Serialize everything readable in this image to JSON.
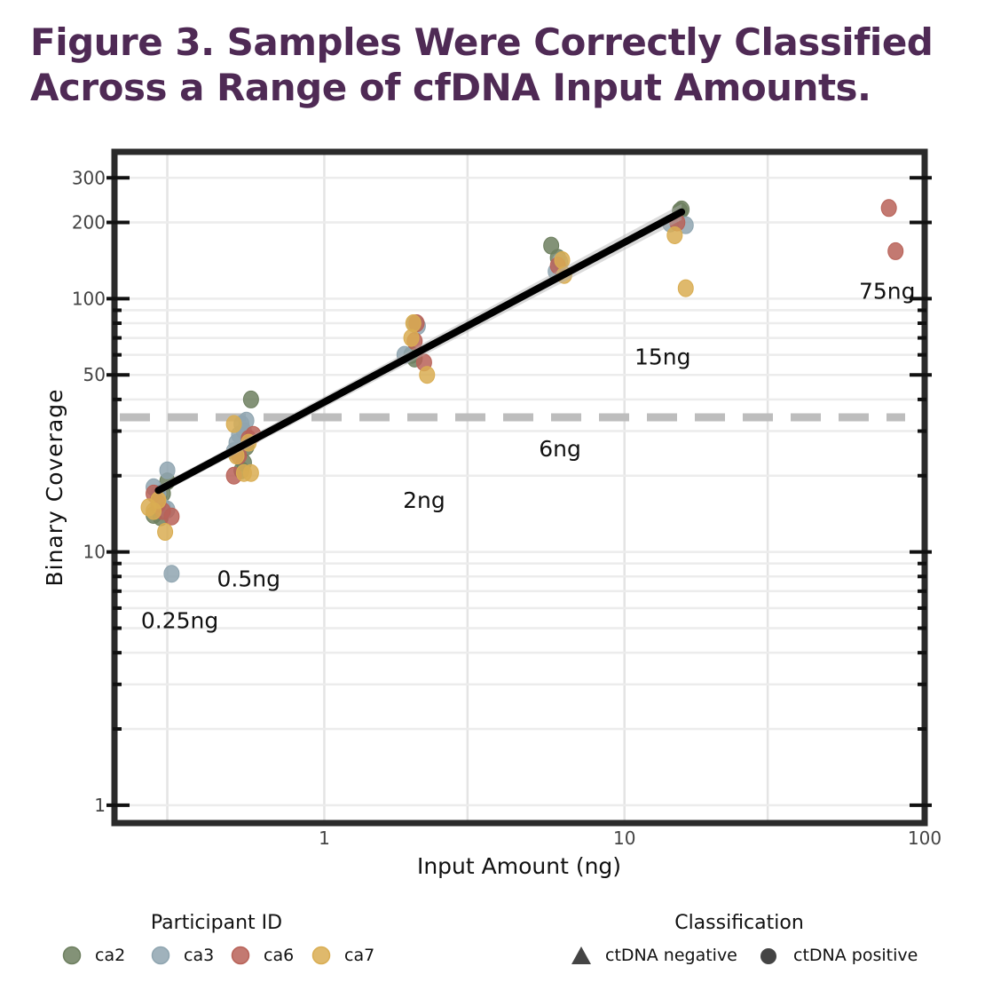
{
  "title": {
    "line1": "Figure 3. Samples Were Correctly Classified",
    "line2": "Across a Range of cfDNA Input Amounts."
  },
  "chart_data": {
    "type": "scatter",
    "x_scale": "log",
    "y_scale": "log",
    "xlabel": "Input Amount (ng)",
    "ylabel": "Binary Coverage",
    "xlim": [
      0.2,
      100
    ],
    "ylim": [
      0.85,
      380
    ],
    "x_ticks": [
      1,
      10,
      100
    ],
    "y_ticks": [
      1,
      10,
      50,
      100,
      200,
      300
    ],
    "grid": true,
    "threshold_line": {
      "y": 34,
      "style": "dashed",
      "color": "#bdbdbd"
    },
    "trend_line": {
      "x": [
        0.28,
        15.5
      ],
      "y": [
        17.5,
        220
      ],
      "color": "#000000"
    },
    "group_labels": [
      {
        "text": "0.25ng",
        "x": 0.33,
        "y": 5.0
      },
      {
        "text": "0.5ng",
        "x": 0.56,
        "y": 7.3
      },
      {
        "text": "2ng",
        "x": 2.15,
        "y": 14.9
      },
      {
        "text": "6ng",
        "x": 6.1,
        "y": 23.8
      },
      {
        "text": "15ng",
        "x": 13.4,
        "y": 55
      },
      {
        "text": "75ng",
        "x": 75,
        "y": 100
      }
    ],
    "series": [
      {
        "name": "ca2",
        "color": "#6d7f5f",
        "points": [
          [
            0.27,
            14
          ],
          [
            0.28,
            15
          ],
          [
            0.28,
            16.5
          ],
          [
            0.29,
            17
          ],
          [
            0.3,
            19
          ],
          [
            0.285,
            13.7
          ],
          [
            0.53,
            21
          ],
          [
            0.54,
            22.5
          ],
          [
            0.55,
            26
          ],
          [
            0.57,
            40
          ],
          [
            1.95,
            60
          ],
          [
            2.0,
            58
          ],
          [
            5.7,
            162
          ],
          [
            6.0,
            145
          ],
          [
            15.5,
            225
          ],
          [
            15.3,
            222
          ]
        ]
      },
      {
        "name": "ca3",
        "color": "#8fa5b0",
        "points": [
          [
            0.27,
            18
          ],
          [
            0.28,
            17
          ],
          [
            0.29,
            15
          ],
          [
            0.3,
            21
          ],
          [
            0.3,
            14.7
          ],
          [
            0.31,
            8.2
          ],
          [
            0.51,
            27
          ],
          [
            0.52,
            29
          ],
          [
            0.53,
            32
          ],
          [
            0.54,
            30
          ],
          [
            0.55,
            33
          ],
          [
            0.5,
            25
          ],
          [
            1.85,
            60
          ],
          [
            2.05,
            78
          ],
          [
            2.0,
            80
          ],
          [
            5.9,
            128
          ],
          [
            6.1,
            140
          ],
          [
            14.2,
            198
          ],
          [
            16.0,
            195
          ]
        ]
      },
      {
        "name": "ca6",
        "color": "#b86258",
        "points": [
          [
            0.27,
            17
          ],
          [
            0.28,
            15.5
          ],
          [
            0.29,
            14.5
          ],
          [
            0.31,
            13.8
          ],
          [
            0.5,
            20
          ],
          [
            0.52,
            24
          ],
          [
            0.56,
            28
          ],
          [
            0.58,
            29
          ],
          [
            2.0,
            68
          ],
          [
            2.03,
            80
          ],
          [
            2.15,
            56
          ],
          [
            6.0,
            135
          ],
          [
            15.0,
            200
          ],
          [
            76,
            228
          ],
          [
            80,
            154
          ]
        ]
      },
      {
        "name": "ca7",
        "color": "#d9ad52",
        "points": [
          [
            0.26,
            15
          ],
          [
            0.27,
            14.5
          ],
          [
            0.28,
            16
          ],
          [
            0.295,
            12
          ],
          [
            0.5,
            32
          ],
          [
            0.51,
            24
          ],
          [
            0.54,
            20.5
          ],
          [
            0.57,
            20.5
          ],
          [
            0.56,
            27
          ],
          [
            1.95,
            70
          ],
          [
            1.98,
            80
          ],
          [
            2.2,
            50
          ],
          [
            6.2,
            142
          ],
          [
            6.3,
            124
          ],
          [
            14.7,
            178
          ],
          [
            16.0,
            110
          ]
        ]
      }
    ],
    "legend": {
      "participant_title": "Participant ID",
      "participants": [
        {
          "label": "ca2",
          "color": "#6d7f5f"
        },
        {
          "label": "ca3",
          "color": "#8fa5b0"
        },
        {
          "label": "ca6",
          "color": "#b86258"
        },
        {
          "label": "ca7",
          "color": "#d9ad52"
        }
      ],
      "classification_title": "Classification",
      "classifications": [
        {
          "label": "ctDNA negative",
          "shape": "triangle",
          "color": "#444444"
        },
        {
          "label": "ctDNA positive",
          "shape": "circle",
          "color": "#444444"
        }
      ]
    }
  }
}
